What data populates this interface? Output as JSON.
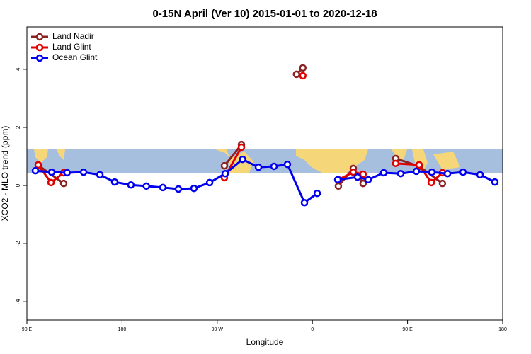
{
  "chart_data": {
    "type": "line",
    "title": "0-15N April (Ver 10)   2015-01-01 to 2020-12-18",
    "x_label": "Longitude",
    "y_label": "XCO2 - MLO trend (ppm)",
    "xlim": [
      90,
      540
    ],
    "ylim": [
      -4.63,
      5.46
    ],
    "xticks": [
      {
        "value": 90,
        "label": "90 E"
      },
      180,
      {
        "value": 270,
        "label": "90 W"
      },
      {
        "value": 360,
        "label": "0"
      },
      {
        "value": 450,
        "label": "90 E"
      },
      {
        "value": 540,
        "label": "180"
      }
    ],
    "yticks": [
      -4,
      -2,
      0,
      2,
      4
    ],
    "legend": "top-left",
    "series": [
      {
        "name": "Land Nadir",
        "color": "#8b2323",
        "x": [
          101.4,
          124.8,
          null,
          276.8,
          292.9,
          null,
          345,
          351,
          null,
          384.6,
          398.7,
          408,
          null,
          438.9,
          461,
          483
        ],
        "values": [
          0.68,
          0.07,
          null,
          0.68,
          1.41,
          null,
          3.83,
          4.05,
          null,
          -0.02,
          0.59,
          0.07,
          null,
          0.93,
          0.66,
          0.07
        ]
      },
      {
        "name": "Land Glint",
        "color": "#e00000",
        "x": [
          100.7,
          112.8,
          124.8,
          null,
          276.8,
          292.9,
          null,
          351,
          null,
          384.6,
          398.7,
          408,
          null,
          438.9,
          461,
          472.4,
          483
        ],
        "values": [
          0.71,
          0.1,
          0.44,
          null,
          0.27,
          1.32,
          null,
          3.78,
          null,
          0.2,
          0.46,
          0.39,
          null,
          0.76,
          0.71,
          0.1,
          0.44
        ]
      },
      {
        "name": "Ocean Glint",
        "color": "#0000ee",
        "x": [
          98,
          113.4,
          128,
          143.6,
          159,
          173,
          188.4,
          203,
          218.6,
          233.3,
          248,
          262.8,
          277.5,
          294,
          309,
          323.7,
          336.4,
          352.5,
          364.6,
          null,
          384,
          402.7,
          412.8,
          427.5,
          443.6,
          458.3,
          473,
          487.8,
          502.5,
          518.6,
          532.6
        ],
        "values": [
          0.51,
          0.46,
          0.44,
          0.46,
          0.37,
          0.12,
          0.02,
          -0.02,
          -0.07,
          -0.12,
          -0.1,
          0.1,
          0.41,
          0.9,
          0.63,
          0.66,
          0.73,
          -0.59,
          -0.27,
          null,
          0.2,
          0.29,
          0.2,
          0.44,
          0.41,
          0.49,
          0.46,
          0.41,
          0.46,
          0.37,
          0.12
        ]
      }
    ]
  }
}
